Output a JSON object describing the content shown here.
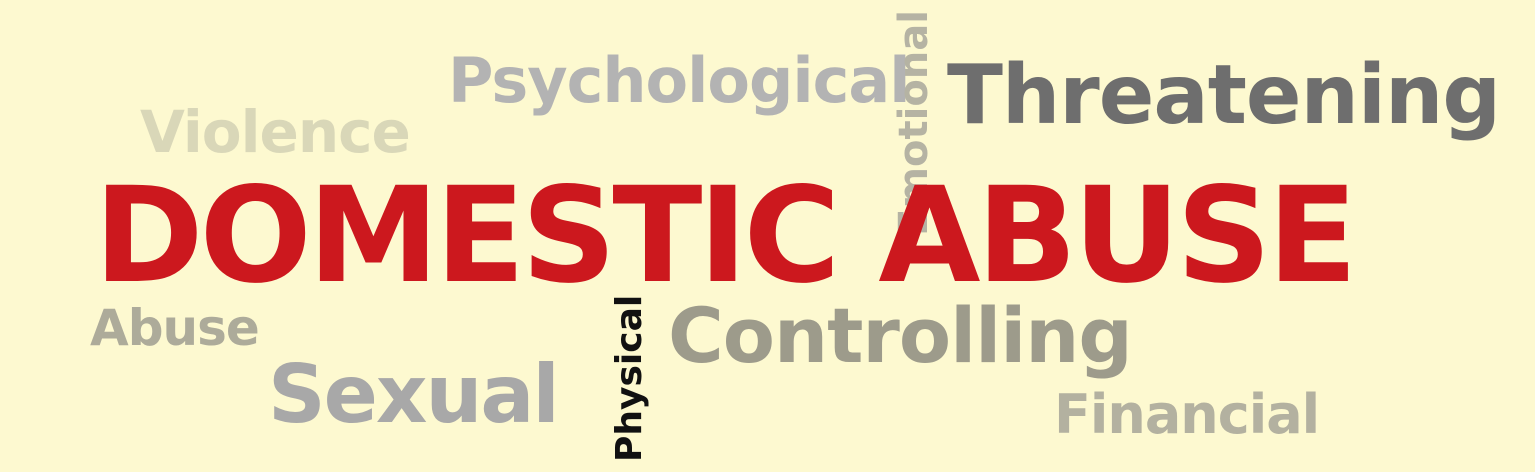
{
  "words": {
    "psychological": "Psychological",
    "violence": "Violence",
    "emotional": "Emotional",
    "threatening": "Threatening",
    "domestic_abuse": "DOMESTIC ABUSE",
    "abuse": "Abuse",
    "sexual": "Sexual",
    "physical": "Physical",
    "controlling": "Controlling",
    "financial": "Financial"
  },
  "colors": {
    "background": "#fdf9d0",
    "headline": "#cc181e",
    "threatening": "#6e6e6e",
    "physical": "#111111"
  }
}
